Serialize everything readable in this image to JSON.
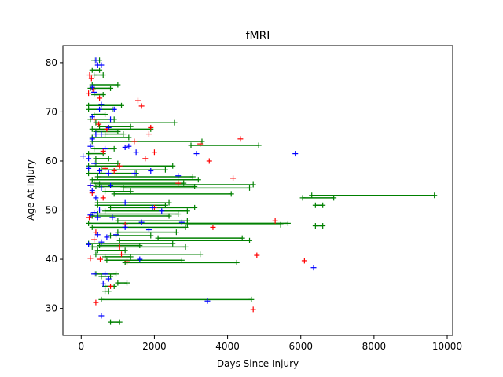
{
  "chart_data": {
    "type": "scatter",
    "title": "fMRI",
    "xlabel": "Days Since Injury",
    "ylabel": "Age At Injury",
    "xlim": [
      -500,
      10150
    ],
    "ylim": [
      24.5,
      83.5
    ],
    "xticks": [
      0,
      2000,
      4000,
      6000,
      8000,
      10000
    ],
    "yticks": [
      30,
      40,
      50,
      60,
      70,
      80
    ],
    "grid": false,
    "marker": "+",
    "colors": {
      "red": "#ff0000",
      "blue": "#0000ff",
      "green": "#008000"
    },
    "red_points": [
      [
        230,
        77.5
      ],
      [
        280,
        76.8
      ],
      [
        320,
        74.5
      ],
      [
        200,
        73.8
      ],
      [
        500,
        72.8
      ],
      [
        1550,
        72.3
      ],
      [
        1650,
        71.2
      ],
      [
        350,
        68.5
      ],
      [
        480,
        67.5
      ],
      [
        700,
        66.5
      ],
      [
        1900,
        66.8
      ],
      [
        1850,
        65.5
      ],
      [
        1450,
        64.0
      ],
      [
        3250,
        63.5
      ],
      [
        4350,
        64.5
      ],
      [
        600,
        62.0
      ],
      [
        1750,
        60.5
      ],
      [
        2000,
        61.8
      ],
      [
        3500,
        60.0
      ],
      [
        650,
        58.5
      ],
      [
        1050,
        59.0
      ],
      [
        4150,
        56.5
      ],
      [
        250,
        55.0
      ],
      [
        2650,
        55.5
      ],
      [
        300,
        53.5
      ],
      [
        600,
        52.5
      ],
      [
        220,
        48.5
      ],
      [
        5300,
        47.8
      ],
      [
        400,
        45.5
      ],
      [
        1050,
        42.5
      ],
      [
        1100,
        41.0
      ],
      [
        250,
        40.2
      ],
      [
        520,
        40.0
      ],
      [
        1250,
        39.5
      ],
      [
        4800,
        40.8
      ],
      [
        6100,
        39.7
      ],
      [
        400,
        31.2
      ],
      [
        4700,
        29.8
      ],
      [
        2000,
        50.5
      ],
      [
        3600,
        46.5
      ],
      [
        900,
        58.0
      ],
      [
        1200,
        47.0
      ],
      [
        350,
        44.0
      ],
      [
        800,
        34.5
      ]
    ],
    "blue_points": [
      [
        400,
        80.5
      ],
      [
        450,
        79.5
      ],
      [
        550,
        79.5
      ],
      [
        300,
        75.0
      ],
      [
        350,
        74.0
      ],
      [
        550,
        71.5
      ],
      [
        500,
        70.5
      ],
      [
        900,
        70.5
      ],
      [
        300,
        69.0
      ],
      [
        800,
        68.5
      ],
      [
        750,
        66.8
      ],
      [
        400,
        65.5
      ],
      [
        550,
        65.5
      ],
      [
        300,
        64.5
      ],
      [
        250,
        63.0
      ],
      [
        650,
        62.5
      ],
      [
        1200,
        62.8
      ],
      [
        1300,
        63.0
      ],
      [
        1500,
        61.8
      ],
      [
        3150,
        61.5
      ],
      [
        5850,
        61.5
      ],
      [
        50,
        61.0
      ],
      [
        200,
        60.5
      ],
      [
        350,
        59.5
      ],
      [
        200,
        58.5
      ],
      [
        500,
        58.0
      ],
      [
        750,
        57.5
      ],
      [
        1450,
        57.5
      ],
      [
        1900,
        58.0
      ],
      [
        2650,
        57.0
      ],
      [
        250,
        55.0
      ],
      [
        550,
        54.5
      ],
      [
        800,
        55.0
      ],
      [
        300,
        54.0
      ],
      [
        400,
        52.5
      ],
      [
        1200,
        51.5
      ],
      [
        350,
        49.5
      ],
      [
        500,
        50.0
      ],
      [
        1950,
        50.5
      ],
      [
        2200,
        49.8
      ],
      [
        250,
        49.0
      ],
      [
        450,
        48.5
      ],
      [
        850,
        48.5
      ],
      [
        1650,
        47.5
      ],
      [
        2750,
        47.5
      ],
      [
        1200,
        46.5
      ],
      [
        1850,
        46.0
      ],
      [
        450,
        45.0
      ],
      [
        700,
        44.5
      ],
      [
        950,
        45.0
      ],
      [
        550,
        43.5
      ],
      [
        1600,
        40.0
      ],
      [
        6350,
        38.3
      ],
      [
        650,
        37.0
      ],
      [
        600,
        35.0
      ],
      [
        550,
        28.5
      ],
      [
        3450,
        31.5
      ],
      [
        350,
        37.0
      ],
      [
        750,
        36.0
      ],
      [
        200,
        43.0
      ]
    ],
    "green_series": [
      {
        "y": 80.5,
        "x": [
          350,
          500
        ]
      },
      {
        "y": 78.5,
        "x": [
          300,
          500
        ]
      },
      {
        "y": 77.5,
        "x": [
          350,
          600
        ]
      },
      {
        "y": 75.5,
        "x": [
          300,
          1000
        ]
      },
      {
        "y": 74.8,
        "x": [
          250,
          800
        ]
      },
      {
        "y": 73.5,
        "x": [
          350,
          600
        ]
      },
      {
        "y": 71.3,
        "x": [
          200,
          1100
        ]
      },
      {
        "y": 70.5,
        "x": [
          200,
          850
        ]
      },
      {
        "y": 69.5,
        "x": [
          350,
          650
        ]
      },
      {
        "y": 68.5,
        "x": [
          250,
          900
        ]
      },
      {
        "y": 67.8,
        "x": [
          400,
          2550
        ]
      },
      {
        "y": 67.0,
        "x": [
          500,
          1350
        ]
      },
      {
        "y": 66.5,
        "x": [
          300,
          1900
        ]
      },
      {
        "y": 66.0,
        "x": [
          400,
          1000
        ]
      },
      {
        "y": 65.5,
        "x": [
          650,
          1150
        ]
      },
      {
        "y": 64.8,
        "x": [
          300,
          1300
        ]
      },
      {
        "y": 64.0,
        "x": [
          300,
          3300
        ]
      },
      {
        "y": 63.2,
        "x": [
          3000,
          4850
        ]
      },
      {
        "y": 62.5,
        "x": [
          350,
          900
        ]
      },
      {
        "y": 61.5,
        "x": [
          200,
          600
        ]
      },
      {
        "y": 60.5,
        "x": [
          400,
          750
        ]
      },
      {
        "y": 59.5,
        "x": [
          400,
          1000
        ]
      },
      {
        "y": 59.0,
        "x": [
          200,
          2500
        ]
      },
      {
        "y": 58.2,
        "x": [
          550,
          2300
        ]
      },
      {
        "y": 57.5,
        "x": [
          200,
          1500
        ]
      },
      {
        "y": 56.8,
        "x": [
          450,
          3050
        ]
      },
      {
        "y": 56.2,
        "x": [
          300,
          3200
        ]
      },
      {
        "y": 55.5,
        "x": [
          350,
          2800
        ]
      },
      {
        "y": 55.2,
        "x": [
          500,
          4700
        ]
      },
      {
        "y": 54.8,
        "x": [
          400,
          3100
        ]
      },
      {
        "y": 54.5,
        "x": [
          1150,
          4600
        ]
      },
      {
        "y": 53.8,
        "x": [
          650,
          1350
        ]
      },
      {
        "y": 53.3,
        "x": [
          900,
          4100
        ]
      },
      {
        "y": 53.0,
        "x": [
          6300,
          9650
        ]
      },
      {
        "y": 52.5,
        "x": [
          6050,
          6900
        ]
      },
      {
        "y": 51.5,
        "x": [
          450,
          2400
        ]
      },
      {
        "y": 51.0,
        "x": [
          450,
          2300
        ]
      },
      {
        "y": 51.0,
        "x": [
          6400,
          6600
        ]
      },
      {
        "y": 50.5,
        "x": [
          800,
          3100
        ]
      },
      {
        "y": 49.8,
        "x": [
          650,
          2900
        ]
      },
      {
        "y": 49.2,
        "x": [
          450,
          2650
        ]
      },
      {
        "y": 48.8,
        "x": [
          300,
          2400
        ]
      },
      {
        "y": 47.8,
        "x": [
          1000,
          2900
        ]
      },
      {
        "y": 47.3,
        "x": [
          200,
          5650
        ]
      },
      {
        "y": 47.0,
        "x": [
          2900,
          5450
        ]
      },
      {
        "y": 46.8,
        "x": [
          6400,
          6600
        ]
      },
      {
        "y": 46.5,
        "x": [
          300,
          2850
        ]
      },
      {
        "y": 45.5,
        "x": [
          1000,
          2600
        ]
      },
      {
        "y": 44.8,
        "x": [
          800,
          1900
        ]
      },
      {
        "y": 44.3,
        "x": [
          2100,
          4400
        ]
      },
      {
        "y": 43.8,
        "x": [
          1050,
          4600
        ]
      },
      {
        "y": 43.2,
        "x": [
          200,
          2500
        ]
      },
      {
        "y": 42.8,
        "x": [
          500,
          1600
        ]
      },
      {
        "y": 42.5,
        "x": [
          300,
          2850
        ]
      },
      {
        "y": 41.8,
        "x": [
          450,
          1200
        ]
      },
      {
        "y": 41.0,
        "x": [
          400,
          3250
        ]
      },
      {
        "y": 40.5,
        "x": [
          650,
          1350
        ]
      },
      {
        "y": 39.8,
        "x": [
          700,
          2750
        ]
      },
      {
        "y": 39.3,
        "x": [
          1200,
          4250
        ]
      },
      {
        "y": 37.0,
        "x": [
          400,
          950
        ]
      },
      {
        "y": 36.5,
        "x": [
          550,
          800
        ]
      },
      {
        "y": 35.2,
        "x": [
          1000,
          1250
        ]
      },
      {
        "y": 34.5,
        "x": [
          650,
          900
        ]
      },
      {
        "y": 33.5,
        "x": [
          650,
          750
        ]
      },
      {
        "y": 31.8,
        "x": [
          550,
          4650
        ]
      },
      {
        "y": 27.2,
        "x": [
          800,
          1050
        ]
      }
    ]
  }
}
